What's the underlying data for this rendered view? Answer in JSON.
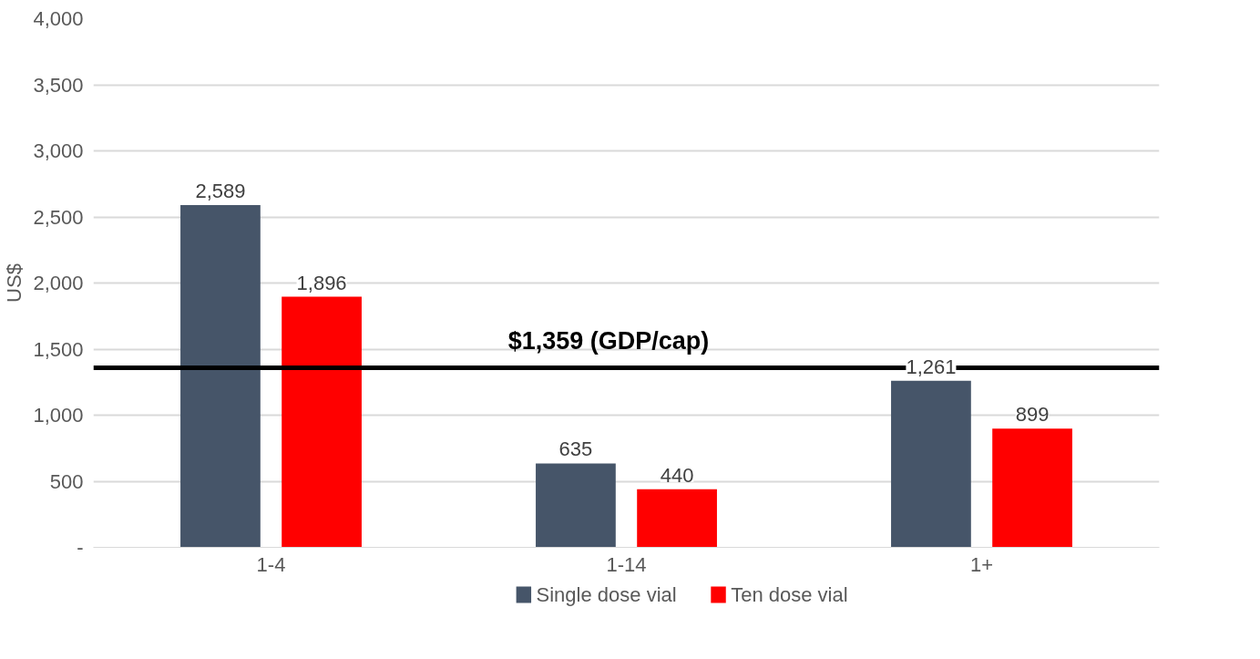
{
  "chart_data": {
    "type": "bar",
    "ylabel": "US$",
    "categories": [
      "1-4",
      "1-14",
      "1+"
    ],
    "series": [
      {
        "name": "Single dose vial",
        "color": "#465569",
        "values": [
          2589,
          635,
          1261
        ],
        "value_labels": [
          "2,589",
          "635",
          "1,261"
        ]
      },
      {
        "name": "Ten dose vial",
        "color": "#ff0000",
        "values": [
          1896,
          440,
          899
        ],
        "value_labels": [
          "1,896",
          "440",
          "899"
        ]
      }
    ],
    "ylim": [
      0,
      4000
    ],
    "yticks": [
      {
        "value": 0,
        "label": "-"
      },
      {
        "value": 500,
        "label": "500"
      },
      {
        "value": 1000,
        "label": "1,000"
      },
      {
        "value": 1500,
        "label": "1,500"
      },
      {
        "value": 2000,
        "label": "2,000"
      },
      {
        "value": 2500,
        "label": "2,500"
      },
      {
        "value": 3000,
        "label": "3,000"
      },
      {
        "value": 3500,
        "label": "3,500"
      },
      {
        "value": 4000,
        "label": "4,000"
      }
    ],
    "grid": "y",
    "legend": "bottom",
    "ref_lines": [
      {
        "axis": "y",
        "value": 1359,
        "label": "$1,359 (GDP/cap)",
        "color": "#000000"
      }
    ]
  }
}
